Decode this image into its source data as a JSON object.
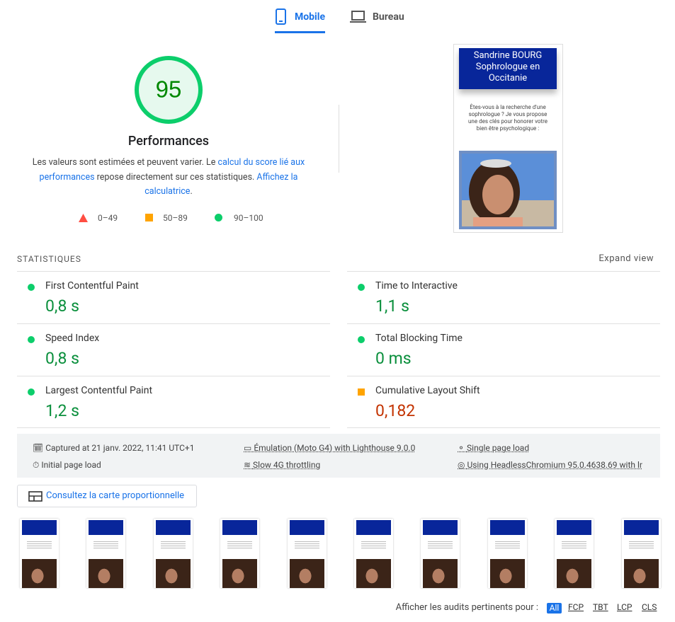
{
  "tabs": {
    "mobile": "Mobile",
    "desktop": "Bureau"
  },
  "score": {
    "value": 95,
    "label": "Performances",
    "description": {
      "text1": "Les valeurs sont estimées et peuvent varier. Le ",
      "link1": "calcul du score lié aux performances",
      "text2": " repose directement sur ces statistiques. ",
      "link2": "Affichez la calculatrice",
      "text3": "."
    },
    "legend": [
      "0–49",
      "50–89",
      "90–100"
    ]
  },
  "screenshot": {
    "heading": "Sandrine BOURG Sophrologue en Occitanie",
    "body": "Êtes-vous à la recherche d'une sophrologue ? Je vous propose une des clés pour honorer votre bien être psychologique :"
  },
  "statistics": {
    "title": "STATISTIQUES",
    "expand": "Expand view",
    "metrics": [
      {
        "name": "First Contentful Paint",
        "value": "0,8 s",
        "status": "good"
      },
      {
        "name": "Time to Interactive",
        "value": "1,1 s",
        "status": "good"
      },
      {
        "name": "Speed Index",
        "value": "0,8 s",
        "status": "good"
      },
      {
        "name": "Total Blocking Time",
        "value": "0 ms",
        "status": "good"
      },
      {
        "name": "Largest Contentful Paint",
        "value": "1,2 s",
        "status": "good"
      },
      {
        "name": "Cumulative Layout Shift",
        "value": "0,182",
        "status": "average"
      }
    ]
  },
  "info": [
    "Captured at 21 janv. 2022, 11:41 UTC+1",
    "Émulation (Moto G4) with Lighthouse 9.0.0",
    "Single page load",
    "Initial page load",
    "Slow 4G throttling",
    "Using HeadlessChromium 95.0.4638.69 with lr"
  ],
  "treemap_button": "Consultez la carte proportionnelle",
  "filter": {
    "label": "Afficher les audits pertinents pour :",
    "options": [
      "All",
      "FCP",
      "TBT",
      "LCP",
      "CLS"
    ]
  }
}
